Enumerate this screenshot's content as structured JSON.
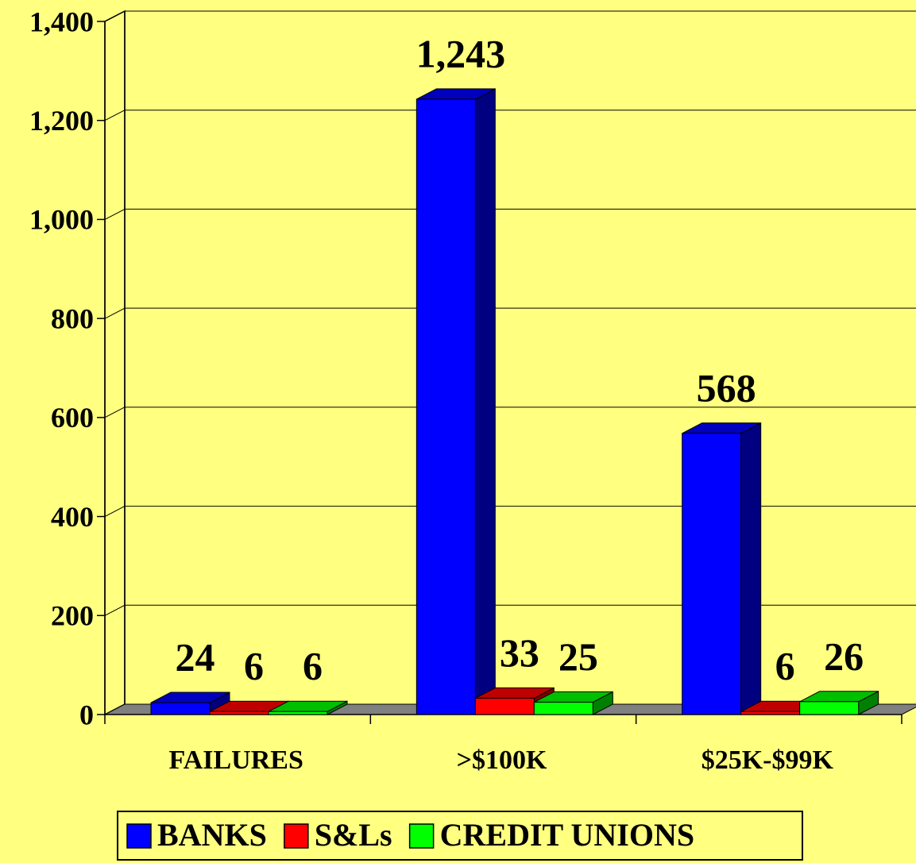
{
  "chart_data": {
    "type": "bar3d",
    "categories": [
      "FAILURES",
      ">$100K",
      "$25K-$99K"
    ],
    "series": [
      {
        "name": "BANKS",
        "color": "#0000ff",
        "values": [
          24,
          1243,
          568
        ],
        "value_labels": [
          "24",
          "1,243",
          "568"
        ]
      },
      {
        "name": "S&Ls",
        "color": "#ff0000",
        "values": [
          6,
          33,
          6
        ]
      },
      {
        "name": "CREDIT UNIONS",
        "color": "#00ff00",
        "values": [
          6,
          25,
          26
        ]
      }
    ],
    "ylim": [
      0,
      1400
    ],
    "yticks": [
      0,
      200,
      400,
      600,
      800,
      {
        "value": 1000,
        "label": "1,000"
      },
      {
        "value": 1200,
        "label": "1,200"
      },
      {
        "value": 1400,
        "label": "1,400"
      }
    ],
    "grid": true,
    "legend": "bottom"
  }
}
